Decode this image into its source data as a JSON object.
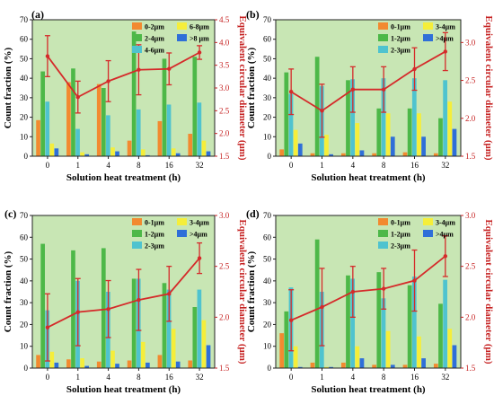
{
  "colors": {
    "plot_bg": "#c8e6b4",
    "c1": "#f28a30",
    "c2": "#4db848",
    "c3": "#4fc3cf",
    "c4": "#f5ee3a",
    "c5": "#2f6fd8",
    "line": "#d52a2a",
    "right_axis": "#c62222"
  },
  "chart_data": [
    {
      "panel": "(a)",
      "type": "bar",
      "categories": [
        "0",
        "1",
        "4",
        "8",
        "16",
        "32"
      ],
      "xlabel": "Solution heat treatment (h)",
      "ylabel": "Count fraction (%)",
      "y2label": "Equivalent circular diameter (μm)",
      "ylim": [
        0,
        70
      ],
      "y2lim": [
        1.5,
        4.5
      ],
      "yticks": [
        "0",
        "10",
        "20",
        "30",
        "40",
        "50",
        "60",
        "70"
      ],
      "y2ticks": [
        "1.5",
        "2.0",
        "2.5",
        "3.0",
        "3.5",
        "4.0",
        "4.5"
      ],
      "series": [
        {
          "name": "0-2μm",
          "values": [
            18.5,
            38,
            37,
            8,
            18,
            11.5
          ]
        },
        {
          "name": "2-4μm",
          "values": [
            43.5,
            45,
            35,
            64,
            50,
            51
          ]
        },
        {
          "name": "4-6μm",
          "values": [
            28,
            14,
            21,
            24,
            26.5,
            27.5
          ]
        },
        {
          "name": "6-8μm",
          "values": [
            6.5,
            2,
            4.5,
            3.5,
            4,
            8
          ]
        },
        {
          "name": ">8 μm",
          "values": [
            4,
            1,
            2.5,
            0.5,
            1.5,
            2.5
          ]
        }
      ],
      "line": {
        "values": [
          3.7,
          2.8,
          3.15,
          3.4,
          3.42,
          3.78
        ],
        "err": [
          0.45,
          0.35,
          0.45,
          0.55,
          0.35,
          0.15
        ]
      }
    },
    {
      "panel": "(b)",
      "type": "bar",
      "categories": [
        "0",
        "1",
        "4",
        "8",
        "16",
        "32"
      ],
      "xlabel": "Solution heat treatment (h)",
      "ylabel": "Count fraction (%)",
      "y2label": "Equivalent circular diameter (μm)",
      "ylim": [
        0,
        70
      ],
      "y2lim": [
        1.5,
        3.3
      ],
      "yticks": [
        "0",
        "10",
        "20",
        "30",
        "40",
        "50",
        "60",
        "70"
      ],
      "y2ticks": [
        "1.5",
        "2.0",
        "2.5",
        "3.0"
      ],
      "series": [
        {
          "name": "0-1μm",
          "values": [
            3.5,
            1.5,
            1.5,
            1.5,
            2,
            1.5
          ]
        },
        {
          "name": "1-2μm",
          "values": [
            43,
            51,
            39,
            24.5,
            24.5,
            19.5
          ]
        },
        {
          "name": "2-3μm",
          "values": [
            32,
            36,
            39.5,
            40,
            40,
            39
          ]
        },
        {
          "name": "3-4μm",
          "values": [
            13.5,
            11,
            17,
            22,
            22,
            28
          ]
        },
        {
          "name": ">4μm",
          "values": [
            6.5,
            1,
            3,
            10,
            10,
            14
          ]
        }
      ],
      "line": {
        "values": [
          2.35,
          2.1,
          2.38,
          2.38,
          2.65,
          2.88
        ],
        "err": [
          0.3,
          0.35,
          0.3,
          0.3,
          0.28,
          0.25
        ]
      }
    },
    {
      "panel": "(c)",
      "type": "bar",
      "categories": [
        "0",
        "1",
        "4",
        "8",
        "16",
        "32"
      ],
      "xlabel": "Solution heat treatment (h)",
      "ylabel": "Count fraction (%)",
      "y2label": "Equivalent circular diameter (μm)",
      "ylim": [
        0,
        70
      ],
      "y2lim": [
        1.5,
        3.0
      ],
      "yticks": [
        "0",
        "10",
        "20",
        "30",
        "40",
        "50",
        "60",
        "70"
      ],
      "y2ticks": [
        "1.5",
        "2.0",
        "2.5",
        "3.0"
      ],
      "series": [
        {
          "name": "0-1μm",
          "values": [
            6,
            4,
            3,
            3.5,
            6,
            3.5
          ]
        },
        {
          "name": "1-2μm",
          "values": [
            57,
            54,
            55,
            41,
            39,
            28
          ]
        },
        {
          "name": "2-3μm",
          "values": [
            26.5,
            40,
            35,
            41,
            36,
            36
          ]
        },
        {
          "name": "3-4μm",
          "values": [
            7.5,
            4.5,
            8,
            12,
            18,
            22
          ]
        },
        {
          "name": ">4μm",
          "values": [
            2.5,
            1,
            2,
            2.5,
            3,
            10.5
          ]
        }
      ],
      "line": {
        "values": [
          1.9,
          2.05,
          2.08,
          2.17,
          2.23,
          2.58
        ],
        "err": [
          0.33,
          0.33,
          0.28,
          0.3,
          0.27,
          0.15
        ]
      }
    },
    {
      "panel": "(d)",
      "type": "bar",
      "categories": [
        "0",
        "1",
        "4",
        "8",
        "16",
        "32"
      ],
      "xlabel": "Solution heat treatment (h)",
      "ylabel": "Count fraction (%)",
      "y2label": "Equivalent circular diameter (μm)",
      "ylim": [
        0,
        70
      ],
      "y2lim": [
        1.5,
        3.0
      ],
      "yticks": [
        "0",
        "10",
        "20",
        "30",
        "40",
        "50",
        "60",
        "70"
      ],
      "y2ticks": [
        "1.5",
        "2.0",
        "2.5",
        "3.0"
      ],
      "series": [
        {
          "name": "0-1μm",
          "values": [
            16,
            2.5,
            2.5,
            1.5,
            1.5,
            2
          ]
        },
        {
          "name": "1-2μm",
          "values": [
            26,
            59,
            42.5,
            44,
            38,
            29.5
          ]
        },
        {
          "name": "2-3μm",
          "values": [
            37,
            35,
            41,
            32,
            42,
            40.5
          ]
        },
        {
          "name": "3-4μm",
          "values": [
            10,
            0.5,
            10,
            17,
            14.5,
            18
          ]
        },
        {
          "name": ">4μm",
          "values": [
            0.5,
            0.5,
            4.5,
            1.5,
            4.5,
            10.5
          ]
        }
      ],
      "line": {
        "values": [
          1.97,
          2.1,
          2.25,
          2.28,
          2.36,
          2.6
        ],
        "err": [
          0.3,
          0.38,
          0.25,
          0.2,
          0.3,
          0.2
        ]
      }
    }
  ]
}
